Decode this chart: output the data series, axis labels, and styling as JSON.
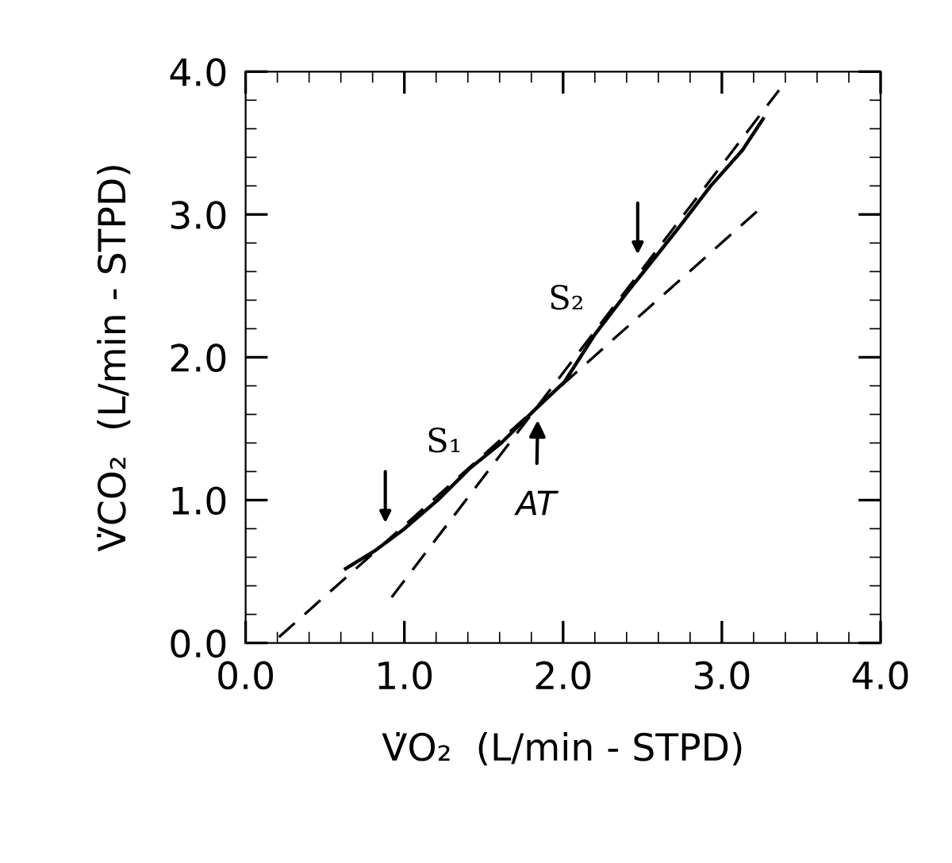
{
  "chart_data": {
    "type": "line",
    "xlabel": "V̇O₂  (L/min - STPD)",
    "ylabel": "V̇CO₂  (L/min - STPD)",
    "series": [
      {
        "color": "#000000",
        "line_style": "solid",
        "x": [
          0.63,
          0.82,
          0.99,
          1.22,
          1.41,
          1.61,
          1.81,
          2.01,
          2.2,
          2.4,
          2.53,
          2.73,
          2.93,
          3.13,
          3.26
        ],
        "values": [
          0.52,
          0.65,
          0.79,
          1.01,
          1.22,
          1.4,
          1.62,
          1.83,
          2.16,
          2.45,
          2.63,
          2.91,
          3.2,
          3.45,
          3.67
        ]
      },
      {
        "color": "#000000",
        "line_style": "dashed",
        "x": [
          0.21,
          3.24
        ],
        "values": [
          0.04,
          3.04
        ]
      },
      {
        "color": "#000000",
        "line_style": "dashed",
        "x": [
          0.92,
          3.36
        ],
        "values": [
          0.32,
          3.87
        ]
      }
    ],
    "annotations": [
      "S₁",
      "S₂",
      "AT"
    ],
    "xlim": [
      0,
      4
    ],
    "ylim": [
      0,
      4
    ],
    "xticks": [
      {
        "value": 0,
        "label": "0.0"
      },
      {
        "value": 1,
        "label": "1.0"
      },
      {
        "value": 2,
        "label": "2.0"
      },
      {
        "value": 3,
        "label": "3.0"
      },
      {
        "value": 4,
        "label": "4.0"
      }
    ],
    "yticks": [
      {
        "value": 0,
        "label": "0.0"
      },
      {
        "value": 1,
        "label": "1.0"
      },
      {
        "value": 2,
        "label": "2.0"
      },
      {
        "value": 3,
        "label": "3.0"
      },
      {
        "value": 4,
        "label": "4.0"
      }
    ],
    "grid": false,
    "legend": false,
    "marker": "none"
  }
}
